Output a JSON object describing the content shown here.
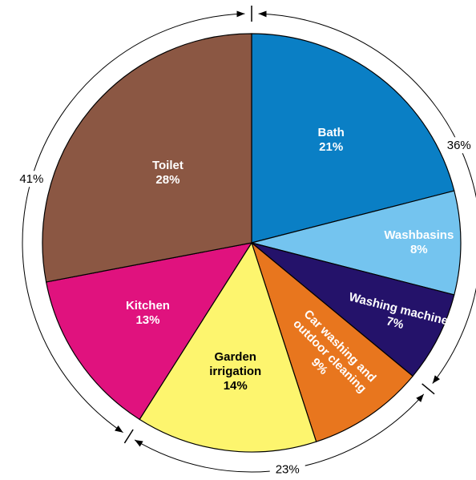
{
  "chart_data": {
    "type": "pie",
    "categories": [
      "Bath",
      "Washbasins",
      "Washing machine",
      "Car washing and outdoor cleaning",
      "Garden irrigation",
      "Kitchen",
      "Toilet"
    ],
    "values": [
      21,
      8,
      7,
      9,
      14,
      13,
      28
    ],
    "value_labels": [
      "21%",
      "8%",
      "7%",
      "9%",
      "14%",
      "13%",
      "28%"
    ],
    "colors": [
      "#0a7fc5",
      "#74c4ef",
      "#24126a",
      "#e8761e",
      "#fdf56e",
      "#e0127e",
      "#8b5743"
    ],
    "groups": {
      "values": [
        36,
        23,
        41
      ],
      "value_labels": [
        "36%",
        "23%",
        "41%"
      ]
    }
  }
}
